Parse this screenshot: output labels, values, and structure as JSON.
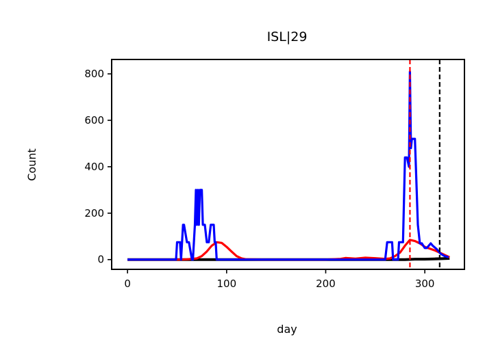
{
  "chart_data": {
    "type": "line",
    "title": "ISL|29",
    "xlabel": "day",
    "ylabel": "Count",
    "xlim": [
      -16,
      340
    ],
    "ylim": [
      -42,
      862
    ],
    "xticks": [
      0,
      100,
      200,
      300
    ],
    "yticks": [
      0,
      200,
      400,
      600,
      800
    ],
    "grid": false,
    "legend": "none",
    "series": [
      {
        "color": "#000000",
        "x": [
          0,
          280,
          290,
          300,
          310,
          325
        ],
        "y": [
          0,
          0,
          2,
          2,
          3,
          5
        ]
      },
      {
        "color": "#ff0000",
        "x": [
          0,
          50,
          60,
          70,
          75,
          80,
          85,
          90,
          95,
          100,
          105,
          110,
          115,
          120,
          140,
          200,
          215,
          220,
          230,
          240,
          250,
          260,
          265,
          270,
          275,
          280,
          285,
          290,
          295,
          300,
          310,
          320,
          325
        ],
        "y": [
          0,
          0,
          1,
          5,
          15,
          35,
          60,
          75,
          72,
          55,
          35,
          15,
          5,
          1,
          0,
          0,
          3,
          7,
          4,
          8,
          6,
          3,
          5,
          15,
          30,
          60,
          85,
          80,
          70,
          55,
          40,
          20,
          10
        ]
      },
      {
        "color": "#0000ff",
        "x": [
          0,
          49,
          50,
          53,
          54,
          56,
          57,
          60,
          62,
          65,
          66,
          68,
          69,
          70,
          71,
          72,
          73,
          75,
          76,
          78,
          80,
          82,
          84,
          85,
          87,
          88,
          89,
          90,
          92,
          110,
          200,
          260,
          262,
          267,
          268,
          273,
          274,
          276,
          278,
          280,
          281,
          282,
          284,
          285,
          286,
          287,
          288,
          290,
          291,
          293,
          295,
          297,
          300,
          302,
          304,
          306,
          308,
          312,
          316,
          320,
          324
        ],
        "y": [
          0,
          0,
          75,
          75,
          0,
          150,
          150,
          75,
          75,
          0,
          0,
          150,
          300,
          150,
          300,
          150,
          300,
          300,
          150,
          150,
          75,
          75,
          150,
          150,
          150,
          75,
          75,
          0,
          0,
          0,
          0,
          0,
          75,
          75,
          0,
          0,
          75,
          75,
          75,
          440,
          440,
          440,
          400,
          810,
          480,
          520,
          520,
          520,
          400,
          150,
          70,
          70,
          50,
          50,
          60,
          70,
          60,
          45,
          25,
          15,
          10
        ]
      }
    ],
    "vlines": [
      {
        "x": 285,
        "color": "#ff0000",
        "style": "dashed"
      },
      {
        "x": 315,
        "color": "#000000",
        "style": "dashed"
      }
    ]
  }
}
